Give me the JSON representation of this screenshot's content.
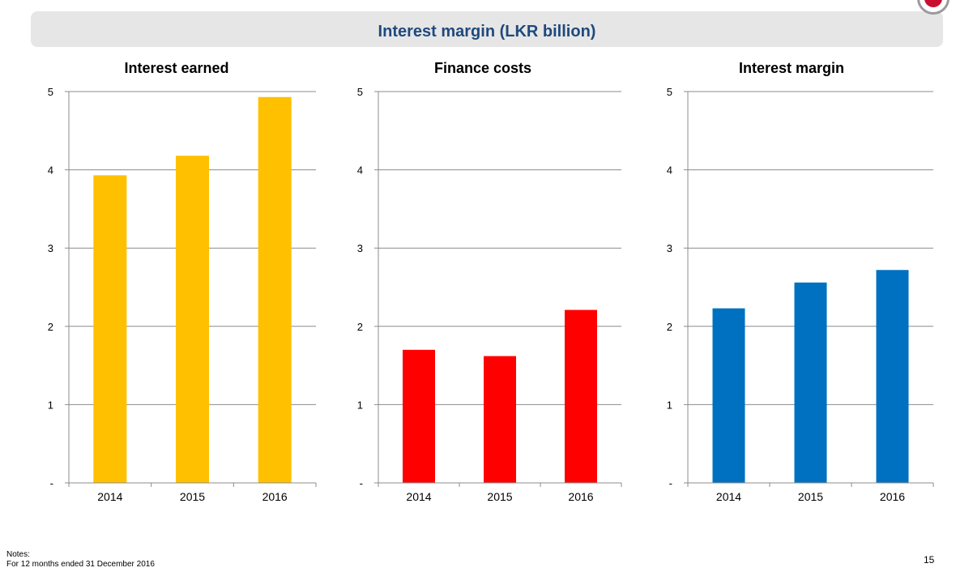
{
  "page": {
    "title": "Interest margin (LKR billion)",
    "notes_heading": "Notes:",
    "notes_text": "For 12 months ended 31 December 2016",
    "page_number": "15"
  },
  "chart_data": [
    {
      "type": "bar",
      "title": "Interest earned",
      "categories": [
        "2014",
        "2015",
        "2016"
      ],
      "values": [
        3.93,
        4.18,
        4.93
      ],
      "ylim": [
        0,
        5
      ],
      "yticks": [
        0,
        1,
        2,
        3,
        4,
        5
      ],
      "ytick_labels": [
        "-",
        "1",
        "2",
        "3",
        "4",
        "5"
      ],
      "color": "#ffc000",
      "grid": true,
      "xlabel": "",
      "ylabel": ""
    },
    {
      "type": "bar",
      "title": "Finance costs",
      "categories": [
        "2014",
        "2015",
        "2016"
      ],
      "values": [
        1.7,
        1.62,
        2.21
      ],
      "ylim": [
        0,
        5
      ],
      "yticks": [
        0,
        1,
        2,
        3,
        4,
        5
      ],
      "ytick_labels": [
        "-",
        "1",
        "2",
        "3",
        "4",
        "5"
      ],
      "color": "#ff0000",
      "grid": true,
      "xlabel": "",
      "ylabel": ""
    },
    {
      "type": "bar",
      "title": "Interest margin",
      "categories": [
        "2014",
        "2015",
        "2016"
      ],
      "values": [
        2.23,
        2.56,
        2.72
      ],
      "ylim": [
        0,
        5
      ],
      "yticks": [
        0,
        1,
        2,
        3,
        4,
        5
      ],
      "ytick_labels": [
        "-",
        "1",
        "2",
        "3",
        "4",
        "5"
      ],
      "color": "#0070c0",
      "grid": true,
      "xlabel": "",
      "ylabel": ""
    }
  ]
}
